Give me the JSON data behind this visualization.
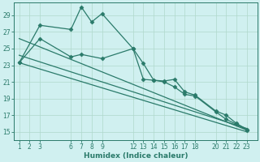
{
  "xlabel": "Humidex (Indice chaleur)",
  "bg_color": "#d0f0f0",
  "grid_color": "#b0d8cc",
  "line_color": "#2a7a6a",
  "xticks": [
    1,
    2,
    3,
    6,
    7,
    8,
    9,
    12,
    13,
    14,
    15,
    16,
    17,
    18,
    20,
    21,
    22,
    23
  ],
  "yticks": [
    15,
    17,
    19,
    21,
    23,
    25,
    27,
    29
  ],
  "ylim": [
    14.0,
    30.5
  ],
  "xlim": [
    0.5,
    24.0
  ],
  "series": [
    {
      "x": [
        1,
        3,
        6,
        7,
        8,
        9,
        12,
        13,
        14,
        15,
        16,
        17,
        18,
        20,
        21,
        22,
        23
      ],
      "y": [
        23.3,
        27.8,
        27.3,
        30.0,
        28.2,
        29.2,
        25.0,
        23.2,
        21.2,
        21.1,
        21.3,
        19.8,
        19.4,
        17.5,
        17.0,
        16.0,
        15.3
      ],
      "marker": "D",
      "markersize": 2.5,
      "lw": 0.9
    },
    {
      "x": [
        1,
        3,
        6,
        7,
        9,
        12,
        13,
        14,
        15,
        16,
        17,
        18,
        20,
        21,
        22,
        23
      ],
      "y": [
        23.3,
        26.2,
        24.0,
        24.3,
        23.8,
        25.0,
        21.3,
        21.2,
        21.0,
        20.4,
        19.5,
        19.3,
        17.4,
        16.5,
        15.9,
        15.2
      ],
      "marker": "D",
      "markersize": 2.5,
      "lw": 0.9
    },
    {
      "x": [
        1,
        23
      ],
      "y": [
        26.2,
        15.2
      ],
      "marker": null,
      "lw": 0.9
    },
    {
      "x": [
        1,
        23
      ],
      "y": [
        24.2,
        15.4
      ],
      "marker": null,
      "lw": 0.9
    },
    {
      "x": [
        1,
        23
      ],
      "y": [
        23.3,
        15.0
      ],
      "marker": null,
      "lw": 0.9
    }
  ]
}
